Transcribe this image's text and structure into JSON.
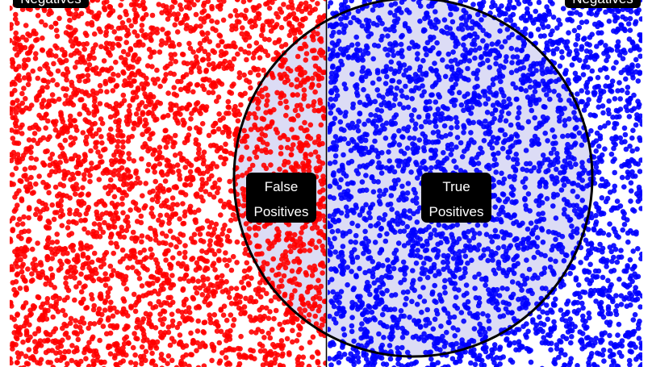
{
  "labels": {
    "negatives_left": "Negatives",
    "negatives_right": "Negatives",
    "false_positives_line1": "False",
    "false_positives_line2": "Positives",
    "true_positives_line1": "True",
    "true_positives_line2": "Positives"
  },
  "colors": {
    "negative_dots": "#ff0000",
    "positive_dots": "#0000ff",
    "selected_fill": "#dcdcf5",
    "label_bg": "#000000",
    "label_text": "#ffffff",
    "circle_stroke": "#000000",
    "divider": "#000000"
  }
}
